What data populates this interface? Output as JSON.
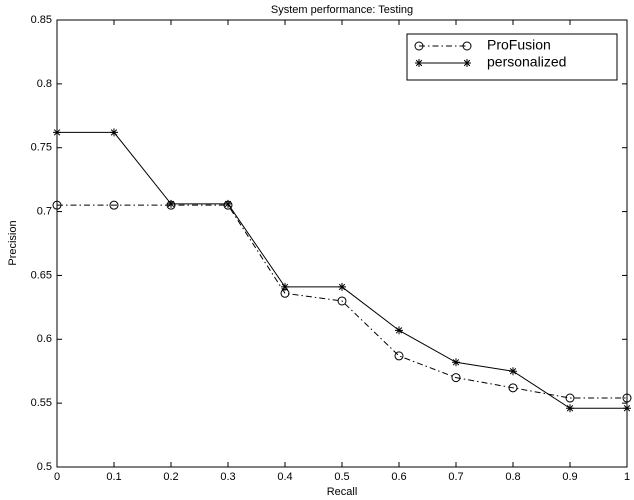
{
  "chart_data": {
    "type": "line",
    "title": "System performance: Testing",
    "x_label": "Recall",
    "y_label": "Precision",
    "x": [
      0,
      0.1,
      0.2,
      0.3,
      0.4,
      0.5,
      0.6,
      0.7,
      0.8,
      0.9,
      1
    ],
    "series": [
      {
        "name": "ProFusion",
        "color": "#000000",
        "linestyle": "dashdot",
        "marker": "circle",
        "values": [
          0.705,
          0.705,
          0.705,
          0.705,
          0.636,
          0.63,
          0.587,
          0.57,
          0.562,
          0.554,
          0.554
        ]
      },
      {
        "name": "personalized",
        "color": "#000000",
        "linestyle": "solid",
        "marker": "star",
        "values": [
          0.762,
          0.762,
          0.706,
          0.706,
          0.641,
          0.641,
          0.607,
          0.582,
          0.575,
          0.546,
          0.546
        ]
      }
    ],
    "xlim": [
      0,
      1
    ],
    "xticks": [
      0,
      0.1,
      0.2,
      0.3,
      0.4,
      0.5,
      0.6,
      0.7,
      0.8,
      0.9,
      1
    ],
    "ylim": [
      0.5,
      0.85
    ],
    "yticks": [
      0.5,
      0.55,
      0.6,
      0.65,
      0.7,
      0.75,
      0.8,
      0.85
    ],
    "grid": false,
    "legend": "upper right"
  }
}
